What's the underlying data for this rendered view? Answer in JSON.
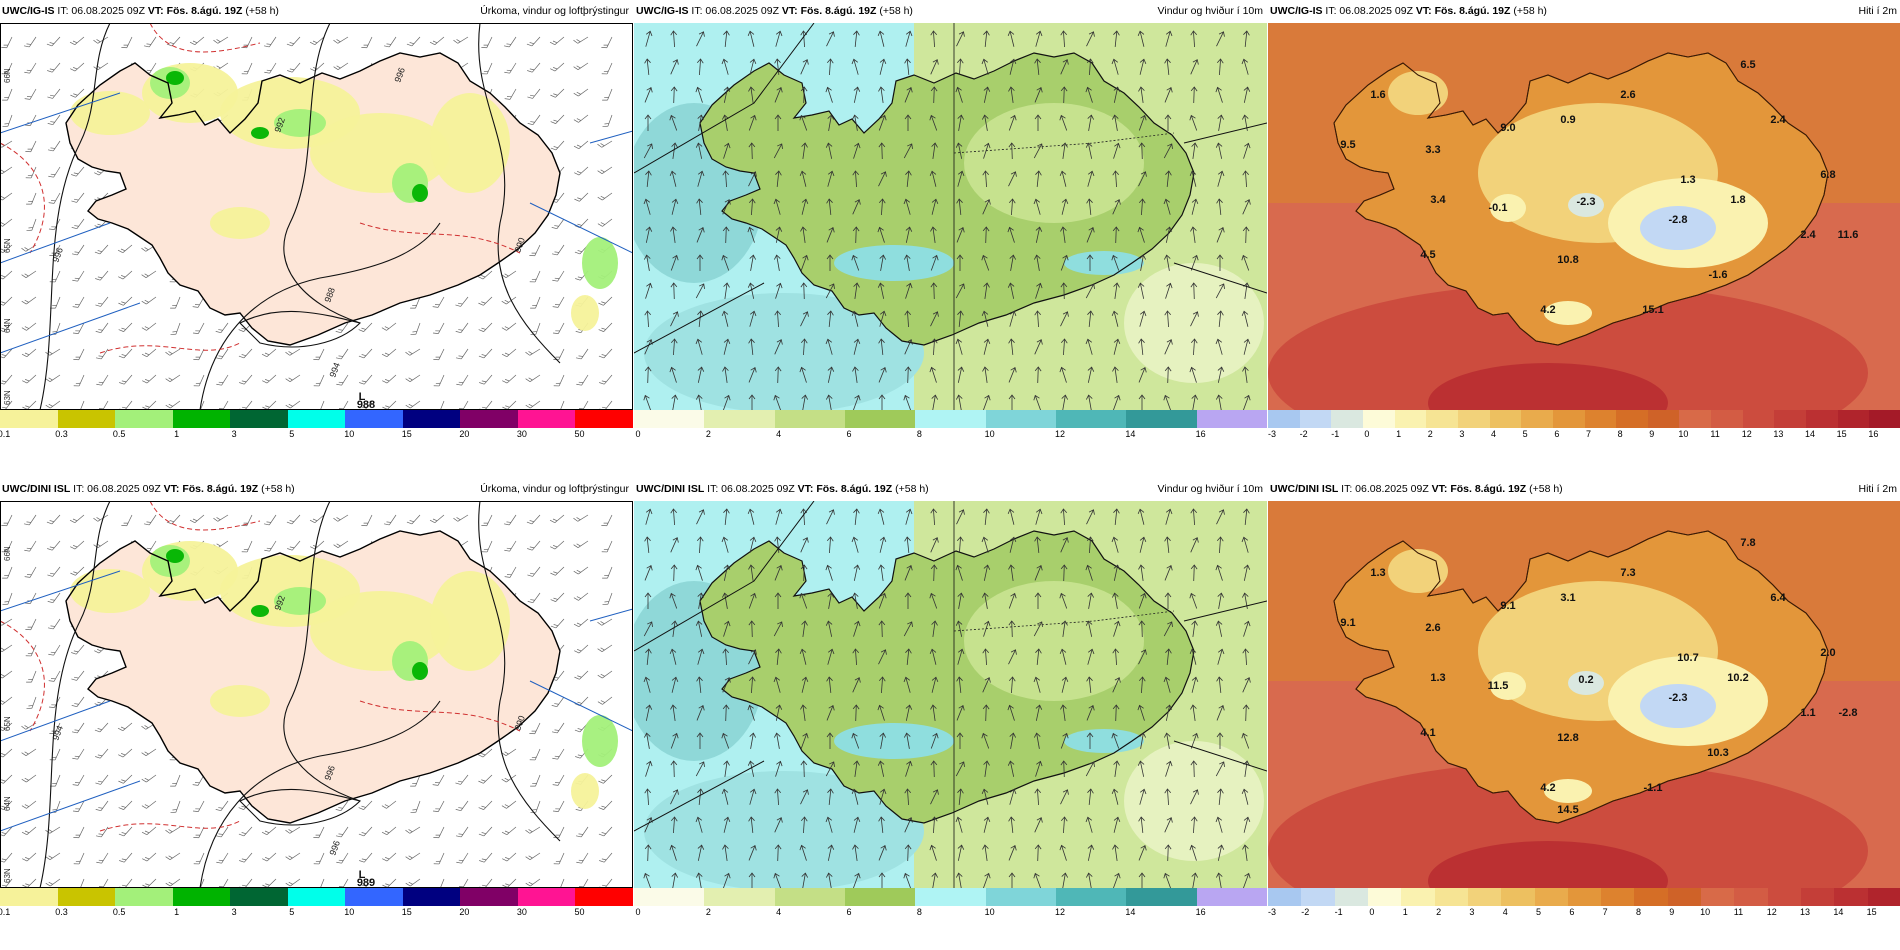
{
  "panels": [
    {
      "id": "precip-top",
      "type": "precip",
      "model": "UWC/IG-IS",
      "it_label": "IT:",
      "it": "06.08.2025 09Z",
      "vt_label": "VT:",
      "vt": "Fös. 8.ágú. 19Z",
      "lead": "(+58 h)",
      "title": "Úrkoma, vindur og loftþrýstingur",
      "lat_labels": [
        "66N",
        "65N",
        "64N",
        "63N"
      ],
      "isobars": [
        "996",
        "994",
        "992",
        "990",
        "988",
        "996"
      ],
      "pressure_center": {
        "label": "L",
        "value": "988"
      },
      "colorbar": {
        "ticks": [
          "0.1",
          "0.3",
          "0.5",
          "1",
          "3",
          "5",
          "10",
          "15",
          "20",
          "30",
          "50"
        ],
        "colors": [
          "#f6f29a",
          "#c9c400",
          "#a3f07a",
          "#00b300",
          "#006633",
          "#00ffea",
          "#3366ff",
          "#000080",
          "#800066",
          "#ff1493",
          "#ff0000"
        ]
      }
    },
    {
      "id": "wind-top",
      "type": "wind",
      "model": "UWC/IG-IS",
      "it_label": "IT:",
      "it": "06.08.2025 09Z",
      "vt_label": "VT:",
      "vt": "Fös. 8.ágú. 19Z",
      "lead": "(+58 h)",
      "title": "Vindur og hviður í 10m",
      "colorbar": {
        "ticks": [
          "0",
          "2",
          "4",
          "6",
          "8",
          "10",
          "12",
          "14",
          "16"
        ],
        "colors": [
          "#fbfbe8",
          "#e3efb0",
          "#c4df86",
          "#9fca5a",
          "#aff4f4",
          "#7fd5d9",
          "#4fb7b7",
          "#339999",
          "#b9a6f2"
        ]
      }
    },
    {
      "id": "temp-top",
      "type": "temp",
      "model": "UWC/IG-IS",
      "it_label": "IT:",
      "it": "06.08.2025 09Z",
      "vt_label": "VT:",
      "vt": "Fös. 8.ágú. 19Z",
      "lead": "(+58 h)",
      "title": "Hiti í 2m",
      "temps": [
        {
          "v": "1.6"
        },
        {
          "v": "9.5"
        },
        {
          "v": "3.3"
        },
        {
          "v": "9.0"
        },
        {
          "v": "0.9"
        },
        {
          "v": "2.6"
        },
        {
          "v": "6.5"
        },
        {
          "v": "2.4"
        },
        {
          "v": "6.8"
        },
        {
          "v": "1.3"
        },
        {
          "v": "1.8"
        },
        {
          "v": "2.4"
        },
        {
          "v": "3.4"
        },
        {
          "v": "-0.1"
        },
        {
          "v": "-2.3"
        },
        {
          "v": "-2.8"
        },
        {
          "v": "11.6"
        },
        {
          "v": "4.5"
        },
        {
          "v": "10.8"
        },
        {
          "v": "-1.6"
        },
        {
          "v": "15.1"
        },
        {
          "v": "4.2"
        }
      ],
      "colorbar": {
        "ticks": [
          "-3",
          "-2",
          "-1",
          "0",
          "1",
          "2",
          "3",
          "4",
          "5",
          "6",
          "7",
          "8",
          "9",
          "10",
          "11",
          "12",
          "13",
          "14",
          "15",
          "16"
        ],
        "colors": [
          "#a8c8f0",
          "#c2d8f4",
          "#dae8e0",
          "#fdfbd8",
          "#faf2b0",
          "#f6e494",
          "#f2d27a",
          "#edc060",
          "#e9ab4c",
          "#e3963a",
          "#dd822e",
          "#d56e26",
          "#cf6228",
          "#d86a48",
          "#d35c44",
          "#cc4c3e",
          "#c43e38",
          "#bb3032",
          "#b0242c",
          "#a41a28"
        ]
      }
    },
    {
      "id": "precip-bottom",
      "type": "precip",
      "model": "UWC/DINI ISL",
      "it_label": "IT:",
      "it": "06.08.2025 09Z",
      "vt_label": "VT:",
      "vt": "Fös. 8.ágú. 19Z",
      "lead": "(+58 h)",
      "title": "Úrkoma, vindur og loftþrýstingur",
      "lat_labels": [
        "66N",
        "65N",
        "64N",
        "63N"
      ],
      "isobars": [
        "994",
        "996",
        "992",
        "990",
        "996"
      ],
      "pressure_center": {
        "label": "L",
        "value": "989"
      },
      "colorbar": {
        "ticks": [
          "0.1",
          "0.3",
          "0.5",
          "1",
          "3",
          "5",
          "10",
          "15",
          "20",
          "30",
          "50"
        ],
        "colors": [
          "#f6f29a",
          "#c9c400",
          "#a3f07a",
          "#00b300",
          "#006633",
          "#00ffea",
          "#3366ff",
          "#000080",
          "#800066",
          "#ff1493",
          "#ff0000"
        ]
      }
    },
    {
      "id": "wind-bottom",
      "type": "wind",
      "model": "UWC/DINI ISL",
      "it_label": "IT:",
      "it": "06.08.2025 09Z",
      "vt_label": "VT:",
      "vt": "Fös. 8.ágú. 19Z",
      "lead": "(+58 h)",
      "title": "Vindur og hviður í 10m",
      "colorbar": {
        "ticks": [
          "0",
          "2",
          "4",
          "6",
          "8",
          "10",
          "12",
          "14",
          "16"
        ],
        "colors": [
          "#fbfbe8",
          "#e3efb0",
          "#c4df86",
          "#9fca5a",
          "#aff4f4",
          "#7fd5d9",
          "#4fb7b7",
          "#339999",
          "#b9a6f2"
        ]
      }
    },
    {
      "id": "temp-bottom",
      "type": "temp",
      "model": "UWC/DINI ISL",
      "it_label": "IT:",
      "it": "06.08.2025 09Z",
      "vt_label": "VT:",
      "vt": "Fös. 8.ágú. 19Z",
      "lead": "(+58 h)",
      "title": "Hiti í 2m",
      "temps": [
        {
          "v": "1.3"
        },
        {
          "v": "9.1"
        },
        {
          "v": "2.6"
        },
        {
          "v": "9.1"
        },
        {
          "v": "3.1"
        },
        {
          "v": "7.3"
        },
        {
          "v": "7.8"
        },
        {
          "v": "6.4"
        },
        {
          "v": "2.0"
        },
        {
          "v": "10.7"
        },
        {
          "v": "10.2"
        },
        {
          "v": "1.1"
        },
        {
          "v": "1.3"
        },
        {
          "v": "11.5"
        },
        {
          "v": "0.2"
        },
        {
          "v": "-2.3"
        },
        {
          "v": "-2.8"
        },
        {
          "v": "4.1"
        },
        {
          "v": "12.8"
        },
        {
          "v": "10.3"
        },
        {
          "v": "-1.1"
        },
        {
          "v": "4.2"
        },
        {
          "v": "14.5"
        }
      ],
      "colorbar": {
        "ticks": [
          "-3",
          "-2",
          "-1",
          "0",
          "1",
          "2",
          "3",
          "4",
          "5",
          "6",
          "7",
          "8",
          "9",
          "10",
          "11",
          "12",
          "13",
          "14",
          "15"
        ],
        "colors": [
          "#a8c8f0",
          "#c2d8f4",
          "#dae8e0",
          "#fdfbd8",
          "#faf2b0",
          "#f6e494",
          "#f2d27a",
          "#edc060",
          "#e9ab4c",
          "#e3963a",
          "#dd822e",
          "#d56e26",
          "#cf6228",
          "#d86a48",
          "#d35c44",
          "#cc4c3e",
          "#c43e38",
          "#bb3032",
          "#b0242c"
        ]
      }
    }
  ]
}
